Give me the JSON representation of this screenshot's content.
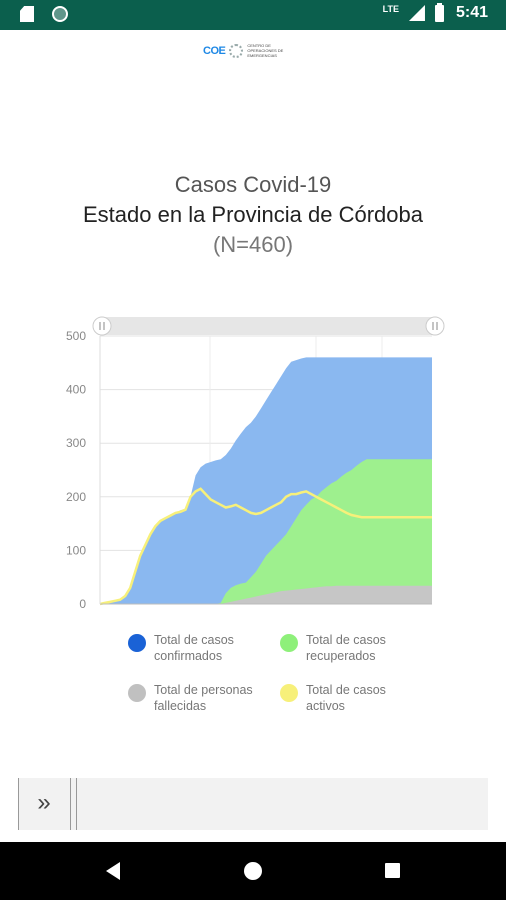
{
  "status_bar": {
    "lte": "LTE",
    "time": "5:41"
  },
  "logo": {
    "mark": "COE",
    "text": "CENTRO DE OPERACIONES DE EMERGENCIAS"
  },
  "titles": {
    "line1": "Casos Covid-19",
    "line2": "Estado en la Provincia de Córdoba",
    "line3": "(N=460)"
  },
  "chart_data": {
    "type": "area",
    "title": "",
    "xlabel": "",
    "ylabel": "",
    "ylim": [
      0,
      500
    ],
    "yticks": [
      0,
      100,
      200,
      300,
      400,
      500
    ],
    "grid": true,
    "legend": "bottom",
    "x": [
      0,
      5,
      10,
      15,
      20,
      25,
      30,
      35,
      40,
      45,
      50,
      55,
      60,
      65,
      70,
      75,
      80,
      85,
      90,
      95,
      100,
      105,
      110,
      115,
      120,
      125,
      130,
      135,
      140,
      145,
      150,
      155,
      160,
      165,
      170,
      175,
      180,
      185,
      190,
      195,
      200,
      205,
      210,
      215,
      220,
      225,
      230,
      235,
      240,
      245,
      250,
      255,
      260,
      265,
      270,
      275,
      280,
      285,
      290,
      295,
      300,
      305,
      310,
      315,
      320,
      325,
      330
    ],
    "series": [
      {
        "name": "Total de casos confirmados",
        "color": "#8ab8f0",
        "values": [
          0,
          2,
          4,
          6,
          8,
          15,
          30,
          60,
          90,
          110,
          130,
          145,
          155,
          160,
          165,
          170,
          175,
          178,
          200,
          240,
          255,
          262,
          265,
          268,
          270,
          278,
          290,
          305,
          318,
          330,
          338,
          350,
          365,
          380,
          395,
          410,
          425,
          440,
          452,
          455,
          458,
          460,
          460,
          460,
          460,
          460,
          460,
          460,
          460,
          460,
          460,
          460,
          460,
          460,
          460,
          460,
          460,
          460,
          460,
          460,
          460,
          460,
          460,
          460,
          460,
          460,
          460
        ]
      },
      {
        "name": "Total de casos recuperados",
        "color": "#9ef08e",
        "values": [
          0,
          0,
          0,
          0,
          0,
          0,
          0,
          0,
          0,
          0,
          0,
          0,
          0,
          0,
          0,
          0,
          0,
          0,
          0,
          0,
          0,
          0,
          0,
          0,
          2,
          20,
          30,
          35,
          38,
          40,
          50,
          60,
          75,
          90,
          100,
          110,
          120,
          130,
          145,
          160,
          175,
          185,
          195,
          200,
          210,
          218,
          225,
          230,
          238,
          245,
          250,
          258,
          265,
          270,
          270,
          270,
          270,
          270,
          270,
          270,
          270,
          270,
          270,
          270,
          270,
          270,
          270
        ]
      },
      {
        "name": "Total de personas fallecidas",
        "color": "#c6c6c6",
        "values": [
          0,
          0,
          0,
          0,
          0,
          0,
          0,
          0,
          0,
          0,
          0,
          0,
          0,
          0,
          0,
          0,
          0,
          0,
          0,
          0,
          0,
          0,
          0,
          0,
          0,
          2,
          4,
          6,
          8,
          10,
          12,
          14,
          16,
          18,
          20,
          22,
          24,
          25,
          26,
          27,
          28,
          29,
          30,
          31,
          32,
          33,
          33,
          34,
          34,
          34,
          34,
          34,
          34,
          34,
          34,
          34,
          34,
          34,
          34,
          34,
          34,
          34,
          34,
          34,
          34,
          34,
          34
        ]
      },
      {
        "name": "Total de casos activos",
        "color": "#f7f07a",
        "values": [
          0,
          2,
          4,
          6,
          8,
          15,
          30,
          60,
          90,
          110,
          130,
          145,
          155,
          160,
          165,
          170,
          172,
          176,
          200,
          210,
          215,
          205,
          195,
          190,
          185,
          180,
          182,
          185,
          180,
          175,
          170,
          168,
          170,
          175,
          180,
          185,
          190,
          200,
          205,
          205,
          208,
          210,
          205,
          200,
          195,
          190,
          185,
          180,
          175,
          170,
          166,
          164,
          162,
          162,
          162,
          162,
          162,
          162,
          162,
          162,
          162,
          162,
          162,
          162,
          162,
          162,
          162
        ]
      }
    ]
  },
  "legend": {
    "confirmados": "Total de casos confirmados",
    "recuperados": "Total de casos recuperados",
    "fallecidas": "Total de personas fallecidas",
    "activos": "Total de casos activos"
  },
  "toolbar": {
    "expand_icon": "»"
  },
  "colors": {
    "status_bar": "#0b5f4d",
    "confirmados_dot": "#1a62d6",
    "recuperados_dot": "#8ef07a",
    "fallecidas_dot": "#c0c0c0",
    "activos_dot": "#f7f07a"
  }
}
